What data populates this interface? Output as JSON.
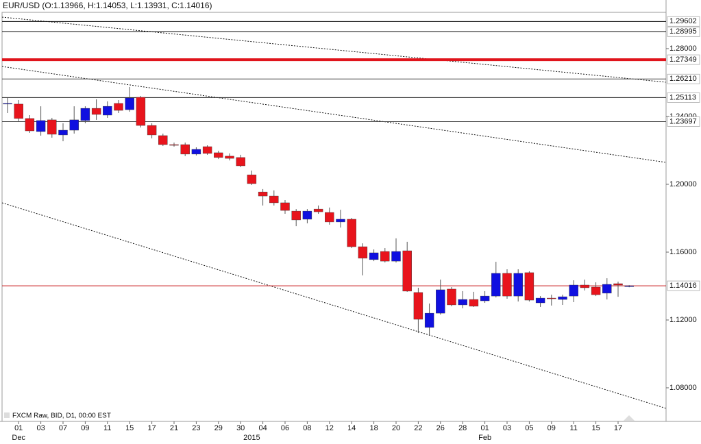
{
  "chart_data": {
    "type": "candlestick",
    "title": "EUR/USD (O:1.13966, H:1.14053, L:1.13931, C:1.14016)",
    "subtitle": "FXCM Raw, BID, D1, 00:00 EST",
    "categories": [
      null,
      "01",
      null,
      "03",
      null,
      "07",
      null,
      "09",
      null,
      "11",
      null,
      "15",
      null,
      "17",
      null,
      "21",
      null,
      "23",
      null,
      "29",
      null,
      "30",
      null,
      "04",
      null,
      "06",
      null,
      "08",
      null,
      "12",
      null,
      "14",
      null,
      "18",
      null,
      "20",
      null,
      "22",
      null,
      "26",
      null,
      "28",
      null,
      "01",
      null,
      "03",
      null,
      "05",
      null,
      "09",
      null,
      "11",
      null,
      "15",
      null,
      "17",
      null
    ],
    "period_labels": [
      null,
      "Dec",
      null,
      null,
      null,
      null,
      null,
      null,
      null,
      null,
      null,
      null,
      null,
      null,
      null,
      null,
      null,
      null,
      null,
      null,
      null,
      null,
      "2015",
      null,
      null,
      null,
      null,
      null,
      null,
      null,
      null,
      null,
      null,
      null,
      null,
      null,
      null,
      null,
      null,
      null,
      null,
      null,
      null,
      "Feb",
      null,
      null,
      null,
      null,
      null,
      null,
      null,
      null,
      null,
      null,
      null,
      null,
      null
    ],
    "open": [
      1.2473,
      1.2473,
      1.2388,
      1.2311,
      1.238,
      1.2291,
      1.2319,
      1.2376,
      1.2448,
      1.2408,
      1.2477,
      1.244,
      1.2513,
      1.2347,
      1.2287,
      1.2234,
      1.2234,
      1.2178,
      1.2222,
      1.2186,
      1.2166,
      1.2158,
      1.2056,
      1.1955,
      1.1931,
      1.1891,
      1.1842,
      1.1794,
      1.1854,
      1.1834,
      1.1778,
      1.1794,
      1.1632,
      1.1556,
      1.1604,
      1.1547,
      1.1608,
      1.1362,
      1.1156,
      1.124,
      1.1382,
      1.1289,
      1.1321,
      1.1313,
      1.1341,
      1.1475,
      1.1341,
      1.1479,
      1.1301,
      1.1329,
      1.1321,
      1.1341,
      1.1406,
      1.1394,
      1.1358,
      1.1414,
      1.13966
    ],
    "high": [
      1.2509,
      1.2497,
      1.2408,
      1.246,
      1.2392,
      1.236,
      1.246,
      1.246,
      1.2501,
      1.2489,
      1.2497,
      1.2574,
      1.2521,
      1.236,
      1.2299,
      1.2246,
      1.2246,
      1.2218,
      1.223,
      1.2198,
      1.2182,
      1.2174,
      1.2081,
      1.1972,
      1.1964,
      1.1907,
      1.1854,
      1.1854,
      1.1875,
      1.1863,
      1.185,
      1.1802,
      1.1652,
      1.1616,
      1.1624,
      1.1681,
      1.1661,
      1.139,
      1.1297,
      1.1438,
      1.1394,
      1.137,
      1.1366,
      1.137,
      1.1543,
      1.1499,
      1.1499,
      1.1487,
      1.1341,
      1.1349,
      1.1349,
      1.1434,
      1.1438,
      1.1422,
      1.1446,
      1.1426,
      1.14053
    ],
    "low": [
      1.242,
      1.2368,
      1.2303,
      1.2287,
      1.2275,
      1.2254,
      1.2299,
      1.236,
      1.238,
      1.2392,
      1.242,
      1.2428,
      1.2335,
      1.2271,
      1.2226,
      1.2222,
      1.2166,
      1.217,
      1.2174,
      1.2149,
      1.2141,
      1.2101,
      1.1996,
      1.1875,
      1.1875,
      1.1826,
      1.1753,
      1.177,
      1.1826,
      1.1762,
      1.1745,
      1.1624,
      1.1463,
      1.1547,
      1.1539,
      1.1539,
      1.1366,
      1.1123,
      1.1107,
      1.1232,
      1.1281,
      1.1269,
      1.1277,
      1.1301,
      1.1333,
      1.1325,
      1.1309,
      1.1309,
      1.1277,
      1.1285,
      1.1289,
      1.1305,
      1.1374,
      1.1341,
      1.1321,
      1.1337,
      1.13931
    ],
    "close": [
      1.2477,
      1.2388,
      1.2315,
      1.2376,
      1.2295,
      1.2319,
      1.238,
      1.2448,
      1.2412,
      1.246,
      1.2436,
      1.2509,
      1.2347,
      1.2291,
      1.2234,
      1.223,
      1.2178,
      1.2206,
      1.2182,
      1.2158,
      1.2153,
      1.2109,
      1.2004,
      1.1931,
      1.1891,
      1.1846,
      1.179,
      1.1842,
      1.1838,
      1.1778,
      1.1794,
      1.1632,
      1.1564,
      1.1596,
      1.1547,
      1.1604,
      1.137,
      1.1204,
      1.124,
      1.1378,
      1.1289,
      1.1321,
      1.1281,
      1.1341,
      1.1475,
      1.1341,
      1.1475,
      1.1317,
      1.1329,
      1.1325,
      1.1337,
      1.1406,
      1.139,
      1.1349,
      1.141,
      1.1406,
      1.14016
    ],
    "up_color": "#1010e0",
    "down_color": "#e8141c",
    "ylim": [
      1.0602,
      1.3014
    ],
    "yticks": [
      {
        "value": 1.08,
        "label": "1.08000"
      },
      {
        "value": 1.12,
        "label": "1.12000"
      },
      {
        "value": 1.16,
        "label": "1.16000"
      },
      {
        "value": 1.2,
        "label": "1.20000"
      },
      {
        "value": 1.24,
        "label": "1.24000"
      },
      {
        "value": 1.28,
        "label": "1.28000"
      }
    ],
    "grid": false,
    "price_lines": [
      {
        "value": 1.29602,
        "label": "1.29602",
        "color": "#000000",
        "width": 1
      },
      {
        "value": 1.28995,
        "label": "1.28995",
        "color": "#000000",
        "width": 1
      },
      {
        "value": 1.27349,
        "label": "1.27349",
        "color": "#e0141c",
        "width": 4
      },
      {
        "value": 1.2621,
        "label": "1.26210",
        "color": "#444444",
        "width": 1
      },
      {
        "value": 1.25113,
        "label": "1.25113",
        "color": "#222222",
        "width": 1
      },
      {
        "value": 1.23697,
        "label": "1.23697",
        "color": "#444444",
        "width": 1
      },
      {
        "value": 1.14016,
        "label": "1.14016",
        "color": "#c81418",
        "width": 1
      }
    ]
  }
}
